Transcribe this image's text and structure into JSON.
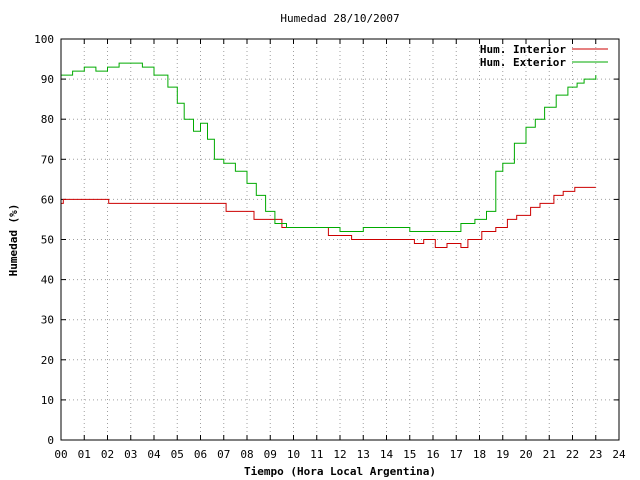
{
  "chart_data": {
    "type": "line",
    "title": "Humedad 28/10/2007",
    "xlabel": "Tiempo (Hora Local Argentina)",
    "ylabel": "Humedad (%)",
    "xlim": [
      0,
      24
    ],
    "ylim": [
      0,
      100
    ],
    "grid": true,
    "legend_position": "top-right",
    "x_ticks": [
      "00",
      "01",
      "02",
      "03",
      "04",
      "05",
      "06",
      "07",
      "08",
      "09",
      "10",
      "11",
      "12",
      "13",
      "14",
      "15",
      "16",
      "17",
      "18",
      "19",
      "20",
      "21",
      "22",
      "23",
      "24"
    ],
    "y_ticks": [
      "0",
      "10",
      "20",
      "30",
      "40",
      "50",
      "60",
      "70",
      "80",
      "90",
      "100"
    ],
    "series": [
      {
        "name": "Hum. Interior",
        "color": "#cc0000",
        "x": [
          0,
          0.1,
          1.8,
          2.05,
          4.2,
          6.4,
          7.1,
          7.9,
          8.3,
          9.0,
          9.5,
          10.0,
          11.5,
          12.5,
          13.5,
          14.5,
          15.2,
          15.6,
          16.1,
          16.6,
          17.2,
          17.5,
          18.1,
          18.7,
          19.2,
          19.6,
          20.2,
          20.6,
          21.2,
          21.6,
          22.1,
          22.6,
          23.0
        ],
        "y": [
          59,
          60,
          60,
          59,
          59,
          59,
          57,
          57,
          55,
          55,
          53,
          53,
          51,
          50,
          50,
          50,
          49,
          50,
          48,
          49,
          48,
          50,
          52,
          53,
          55,
          56,
          58,
          59,
          61,
          62,
          63,
          63,
          63
        ]
      },
      {
        "name": "Hum. Exterior",
        "color": "#00aa00",
        "x": [
          0,
          0.5,
          1.0,
          1.5,
          2.0,
          2.5,
          3.0,
          3.5,
          4.0,
          4.3,
          4.6,
          5.0,
          5.3,
          5.7,
          6.0,
          6.3,
          6.6,
          7.0,
          7.5,
          8.0,
          8.4,
          8.8,
          9.2,
          9.7,
          10.2,
          11.0,
          12.0,
          13.0,
          14.0,
          15.0,
          16.0,
          16.8,
          17.2,
          17.8,
          18.3,
          18.7,
          19.0,
          19.5,
          20.0,
          20.4,
          20.8,
          21.3,
          21.8,
          22.2,
          22.5,
          23.0
        ],
        "y": [
          91,
          92,
          93,
          92,
          93,
          94,
          94,
          93,
          91,
          91,
          88,
          84,
          80,
          77,
          79,
          75,
          70,
          69,
          67,
          64,
          61,
          57,
          54,
          53,
          53,
          53,
          52,
          53,
          53,
          52,
          52,
          52,
          54,
          55,
          57,
          67,
          69,
          74,
          78,
          80,
          83,
          86,
          88,
          89,
          90,
          91
        ]
      }
    ]
  }
}
